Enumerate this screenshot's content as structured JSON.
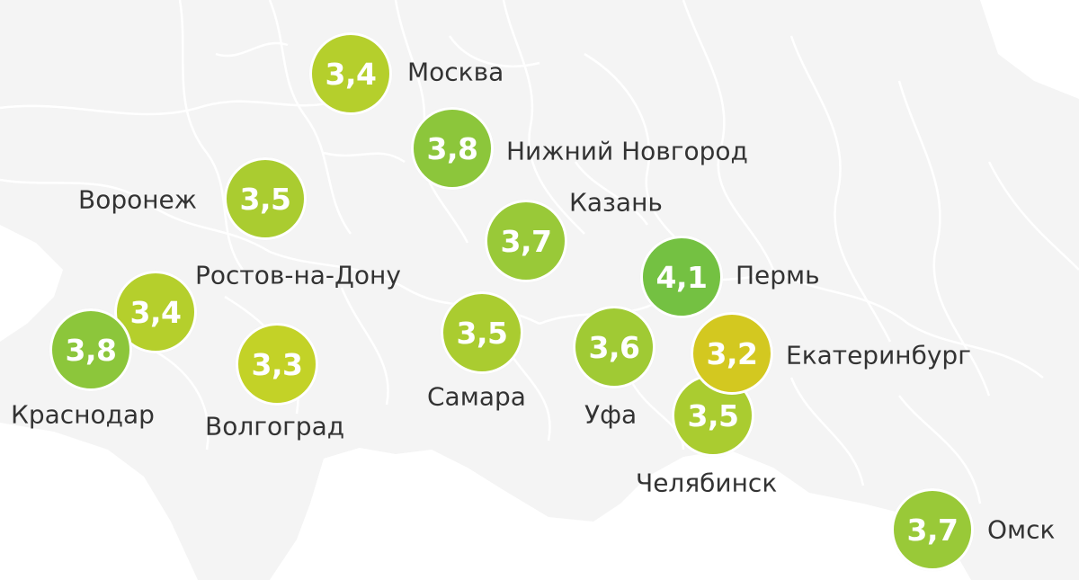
{
  "map": {
    "colors": {
      "land": "#f4f4f4",
      "water": "#ffffff",
      "borders": "#ffffff"
    },
    "cities": [
      {
        "id": "moskva",
        "name": "Москва",
        "value": "3,4",
        "color": "#b5cf2c"
      },
      {
        "id": "nizhny",
        "name": "Нижний Новгород",
        "value": "3,8",
        "color": "#8cc63b"
      },
      {
        "id": "voronezh",
        "name": "Воронеж",
        "value": "3,5",
        "color": "#aacc30"
      },
      {
        "id": "kazan",
        "name": "Казань",
        "value": "3,7",
        "color": "#99c938"
      },
      {
        "id": "rostov",
        "name": "Ростов-на-Дону",
        "value": "3,4",
        "color": "#b5cf2c"
      },
      {
        "id": "perm",
        "name": "Пермь",
        "value": "4,1",
        "color": "#74c142"
      },
      {
        "id": "krasnodar",
        "name": "Краснодар",
        "value": "3,8",
        "color": "#8cc63b"
      },
      {
        "id": "volgograd",
        "name": "Волгоград",
        "value": "3,3",
        "color": "#c3d227"
      },
      {
        "id": "samara",
        "name": "Самара",
        "value": "3,5",
        "color": "#aacc30"
      },
      {
        "id": "ufa",
        "name": "Уфа",
        "value": "3,6",
        "color": "#a0ca34"
      },
      {
        "id": "ekaterinburg",
        "name": "Екатеринбург",
        "value": "3,2",
        "color": "#d3c820"
      },
      {
        "id": "chelyabinsk",
        "name": "Челябинск",
        "value": "3,5",
        "color": "#aacc30"
      },
      {
        "id": "omsk",
        "name": "Омск",
        "value": "3,7",
        "color": "#99c938"
      }
    ]
  }
}
